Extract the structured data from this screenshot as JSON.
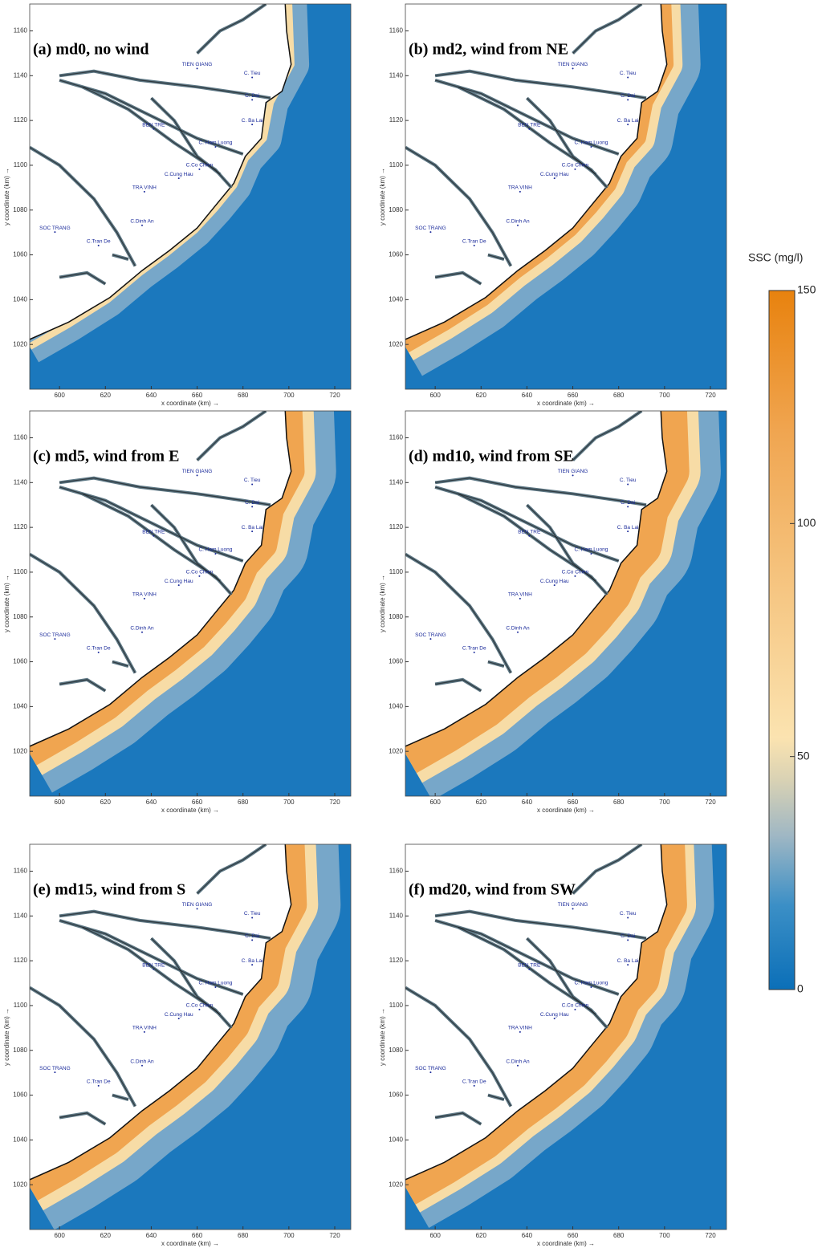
{
  "panels": [
    {
      "title": "(a) md0, no wind"
    },
    {
      "title": "(b) md2, wind from NE"
    },
    {
      "title": "(c) md5, wind from E"
    },
    {
      "title": "(d) md10, wind from SE"
    },
    {
      "title": "(e) md15, wind from S"
    },
    {
      "title": "(f) md20, wind from SW"
    }
  ],
  "x_axis_label": "x coordinate (km) →",
  "y_axis_label": "y coordinate (km) →",
  "xlim": [
    587,
    727
  ],
  "ylim": [
    1000,
    1172
  ],
  "xticks": [
    600,
    620,
    640,
    660,
    680,
    700,
    720
  ],
  "yticks": [
    1020,
    1040,
    1060,
    1080,
    1100,
    1120,
    1140,
    1160
  ],
  "place_labels": [
    "TIEN GIANG",
    "C. Tieu",
    "C. Dai",
    "BEN TRE",
    "C. Ba Lai",
    "C. Ham Luong",
    "C.Co Chien",
    "C.Cung Hau",
    "TRA VINH",
    "SOC TRANG",
    "C.Dinh An",
    "C.Tran De"
  ],
  "colorbar": {
    "title": "SSC (mg/l)",
    "lim": [
      0,
      150
    ],
    "ticks": [
      0,
      50,
      100,
      150
    ]
  }
}
